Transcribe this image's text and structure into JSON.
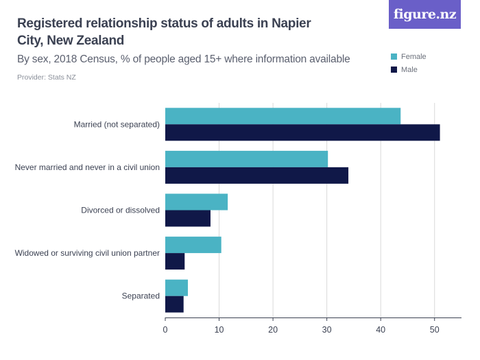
{
  "header": {
    "title": "Registered relationship status of adults in Napier City, New Zealand",
    "subtitle": "By sex, 2018 Census, % of people aged 15+ where information available",
    "provider": "Provider: Stats NZ",
    "logo": "figure.nz"
  },
  "colors": {
    "female": "#4ab3c4",
    "male": "#101848",
    "grid": "#d9d9d9",
    "axis": "#3b4152",
    "logo_bg": "#6a5fc8"
  },
  "chart_data": {
    "type": "bar",
    "orientation": "horizontal",
    "title": "Registered relationship status of adults in Napier City, New Zealand",
    "xlabel": "",
    "ylabel": "",
    "xlim": [
      0,
      55
    ],
    "xticks": [
      0,
      10,
      20,
      30,
      40,
      50
    ],
    "grid": true,
    "legend_position": "top-right",
    "categories": [
      "Married (not separated)",
      "Never married and never in a civil union",
      "Divorced or dissolved",
      "Widowed or surviving civil union partner",
      "Separated"
    ],
    "series": [
      {
        "name": "Female",
        "values": [
          43.7,
          30.2,
          11.6,
          10.4,
          4.2
        ]
      },
      {
        "name": "Male",
        "values": [
          51.0,
          34.0,
          8.4,
          3.6,
          3.4
        ]
      }
    ]
  }
}
